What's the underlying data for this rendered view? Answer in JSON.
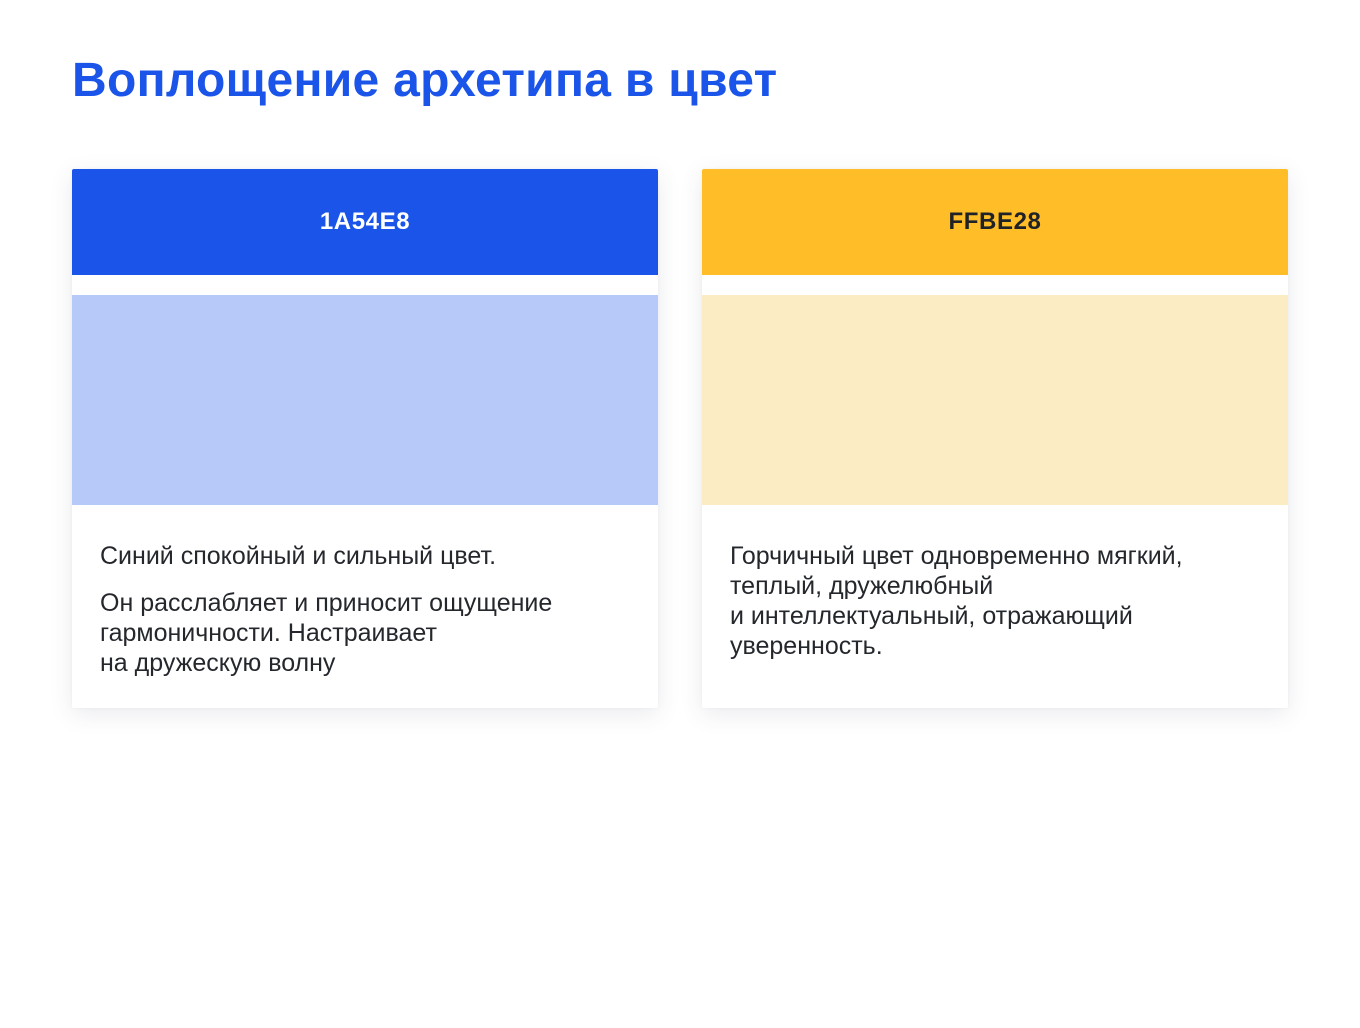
{
  "page": {
    "title": "Воплощение архетипа в цвет",
    "title_color": "#1A54E8",
    "background": "#FFFFFF"
  },
  "cards": [
    {
      "name": "blue",
      "hex_label": "1A54E8",
      "main_color": "#1A54E8",
      "tint_color": "#B6C9F9",
      "label_color": "#FFFFFF",
      "paragraphs": [
        "Синий спокойный и сильный цвет.",
        "Он расслабляет и приносит ощущение\nгармоничности. Настраивает\nна дружескую волну"
      ]
    },
    {
      "name": "mustard",
      "hex_label": "FFBE28",
      "main_color": "#FFBE28",
      "tint_color": "#FCECC4",
      "label_color": "#1F2227",
      "paragraphs": [
        "Горчичный цвет одновременно мягкий,\nтеплый, дружелюбный\nи интеллектуальный, отражающий\nуверенность."
      ]
    }
  ]
}
